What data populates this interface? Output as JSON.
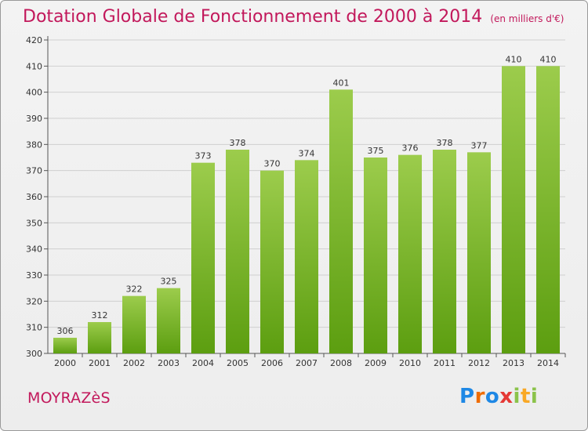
{
  "title": "Dotation Globale de Fonctionnement de 2000 à 2014",
  "unit_note": "(en milliers d'€)",
  "commune": "MOYRAZèS",
  "brand": {
    "letters": [
      "P",
      "r",
      "o",
      "x",
      "i",
      "t",
      "i"
    ],
    "colors": [
      "#1e88e5",
      "#ef6c00",
      "#1e88e5",
      "#e53935",
      "#8bc34a",
      "#f9a825",
      "#8bc34a"
    ]
  },
  "colors": {
    "title": "#c2185b",
    "bar_light": "#9ccc4c",
    "bar_dark": "#5c9e10",
    "grid": "#cfcfcf"
  },
  "chart_data": {
    "type": "bar",
    "title": "Dotation Globale de Fonctionnement de 2000 à 2014",
    "categories": [
      "2000",
      "2001",
      "2002",
      "2003",
      "2004",
      "2005",
      "2006",
      "2007",
      "2008",
      "2009",
      "2010",
      "2011",
      "2012",
      "2013",
      "2014"
    ],
    "values": [
      306,
      312,
      322,
      325,
      373,
      378,
      370,
      374,
      401,
      375,
      376,
      378,
      377,
      410,
      410
    ],
    "value_labels": [
      "306",
      "312",
      "322",
      "325",
      "373",
      "378",
      "370",
      "374",
      "401",
      "375",
      "376",
      "378",
      "377",
      "410",
      "410"
    ],
    "ylim": [
      300,
      420
    ],
    "yticks": [
      "300",
      "310",
      "320",
      "330",
      "340",
      "350",
      "360",
      "370",
      "380",
      "390",
      "400",
      "410",
      "420"
    ],
    "ytick_values": [
      300,
      310,
      320,
      330,
      340,
      350,
      360,
      370,
      380,
      390,
      400,
      410,
      420
    ],
    "grid": true,
    "legend": "none"
  }
}
